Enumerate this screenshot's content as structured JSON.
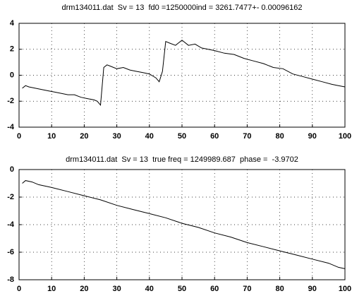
{
  "chart_data": [
    {
      "type": "line",
      "title": "drm134011.dat  Sv = 13  fd0 =1250000ind = 3261.7477+- 0.00096162",
      "xlim": [
        0,
        100
      ],
      "xticks": [
        0,
        10,
        20,
        30,
        40,
        50,
        60,
        70,
        80,
        90,
        100
      ],
      "ylim": [
        -4,
        4
      ],
      "yticks": [
        4,
        2,
        0,
        -2,
        -4
      ],
      "grid": true,
      "x": [
        1,
        2,
        3,
        5,
        7,
        9,
        11,
        13,
        15,
        17,
        19,
        21,
        23,
        24,
        25,
        26,
        27,
        28,
        30,
        32,
        34,
        36,
        38,
        40,
        42,
        43,
        44,
        45,
        46,
        48,
        50,
        52,
        54,
        56,
        58,
        60,
        63,
        66,
        69,
        72,
        75,
        78,
        81,
        84,
        87,
        90,
        93,
        96,
        98,
        100
      ],
      "series": [
        {
          "color": "#000000",
          "values": [
            -1.0,
            -0.8,
            -0.9,
            -1.0,
            -1.1,
            -1.2,
            -1.3,
            -1.4,
            -1.5,
            -1.5,
            -1.7,
            -1.8,
            -1.9,
            -2.0,
            -2.3,
            0.6,
            0.8,
            0.7,
            0.5,
            0.6,
            0.4,
            0.3,
            0.2,
            0.1,
            -0.2,
            -0.5,
            0.3,
            2.6,
            2.5,
            2.3,
            2.7,
            2.3,
            2.4,
            2.1,
            2.0,
            1.9,
            1.7,
            1.6,
            1.3,
            1.1,
            0.9,
            0.6,
            0.5,
            0.1,
            -0.1,
            -0.3,
            -0.5,
            -0.7,
            -0.8,
            -0.9
          ]
        }
      ]
    },
    {
      "type": "line",
      "title": "drm134011.dat  Sv = 13  true freq = 1249989.687  phase =  -3.9702",
      "xlim": [
        0,
        100
      ],
      "xticks": [
        0,
        10,
        20,
        30,
        40,
        50,
        60,
        70,
        80,
        90,
        100
      ],
      "ylim": [
        -8,
        0
      ],
      "yticks": [
        0,
        -2,
        -4,
        -6,
        -8
      ],
      "grid": true,
      "x": [
        1,
        2,
        4,
        6,
        8,
        10,
        15,
        20,
        25,
        30,
        35,
        40,
        45,
        50,
        55,
        60,
        65,
        70,
        75,
        80,
        85,
        90,
        95,
        98,
        100
      ],
      "series": [
        {
          "color": "#000000",
          "values": [
            -1.0,
            -0.8,
            -0.9,
            -1.1,
            -1.2,
            -1.3,
            -1.6,
            -1.9,
            -2.2,
            -2.6,
            -2.9,
            -3.2,
            -3.5,
            -3.9,
            -4.2,
            -4.6,
            -4.9,
            -5.3,
            -5.6,
            -5.9,
            -6.2,
            -6.5,
            -6.8,
            -7.1,
            -7.2
          ]
        }
      ]
    }
  ]
}
